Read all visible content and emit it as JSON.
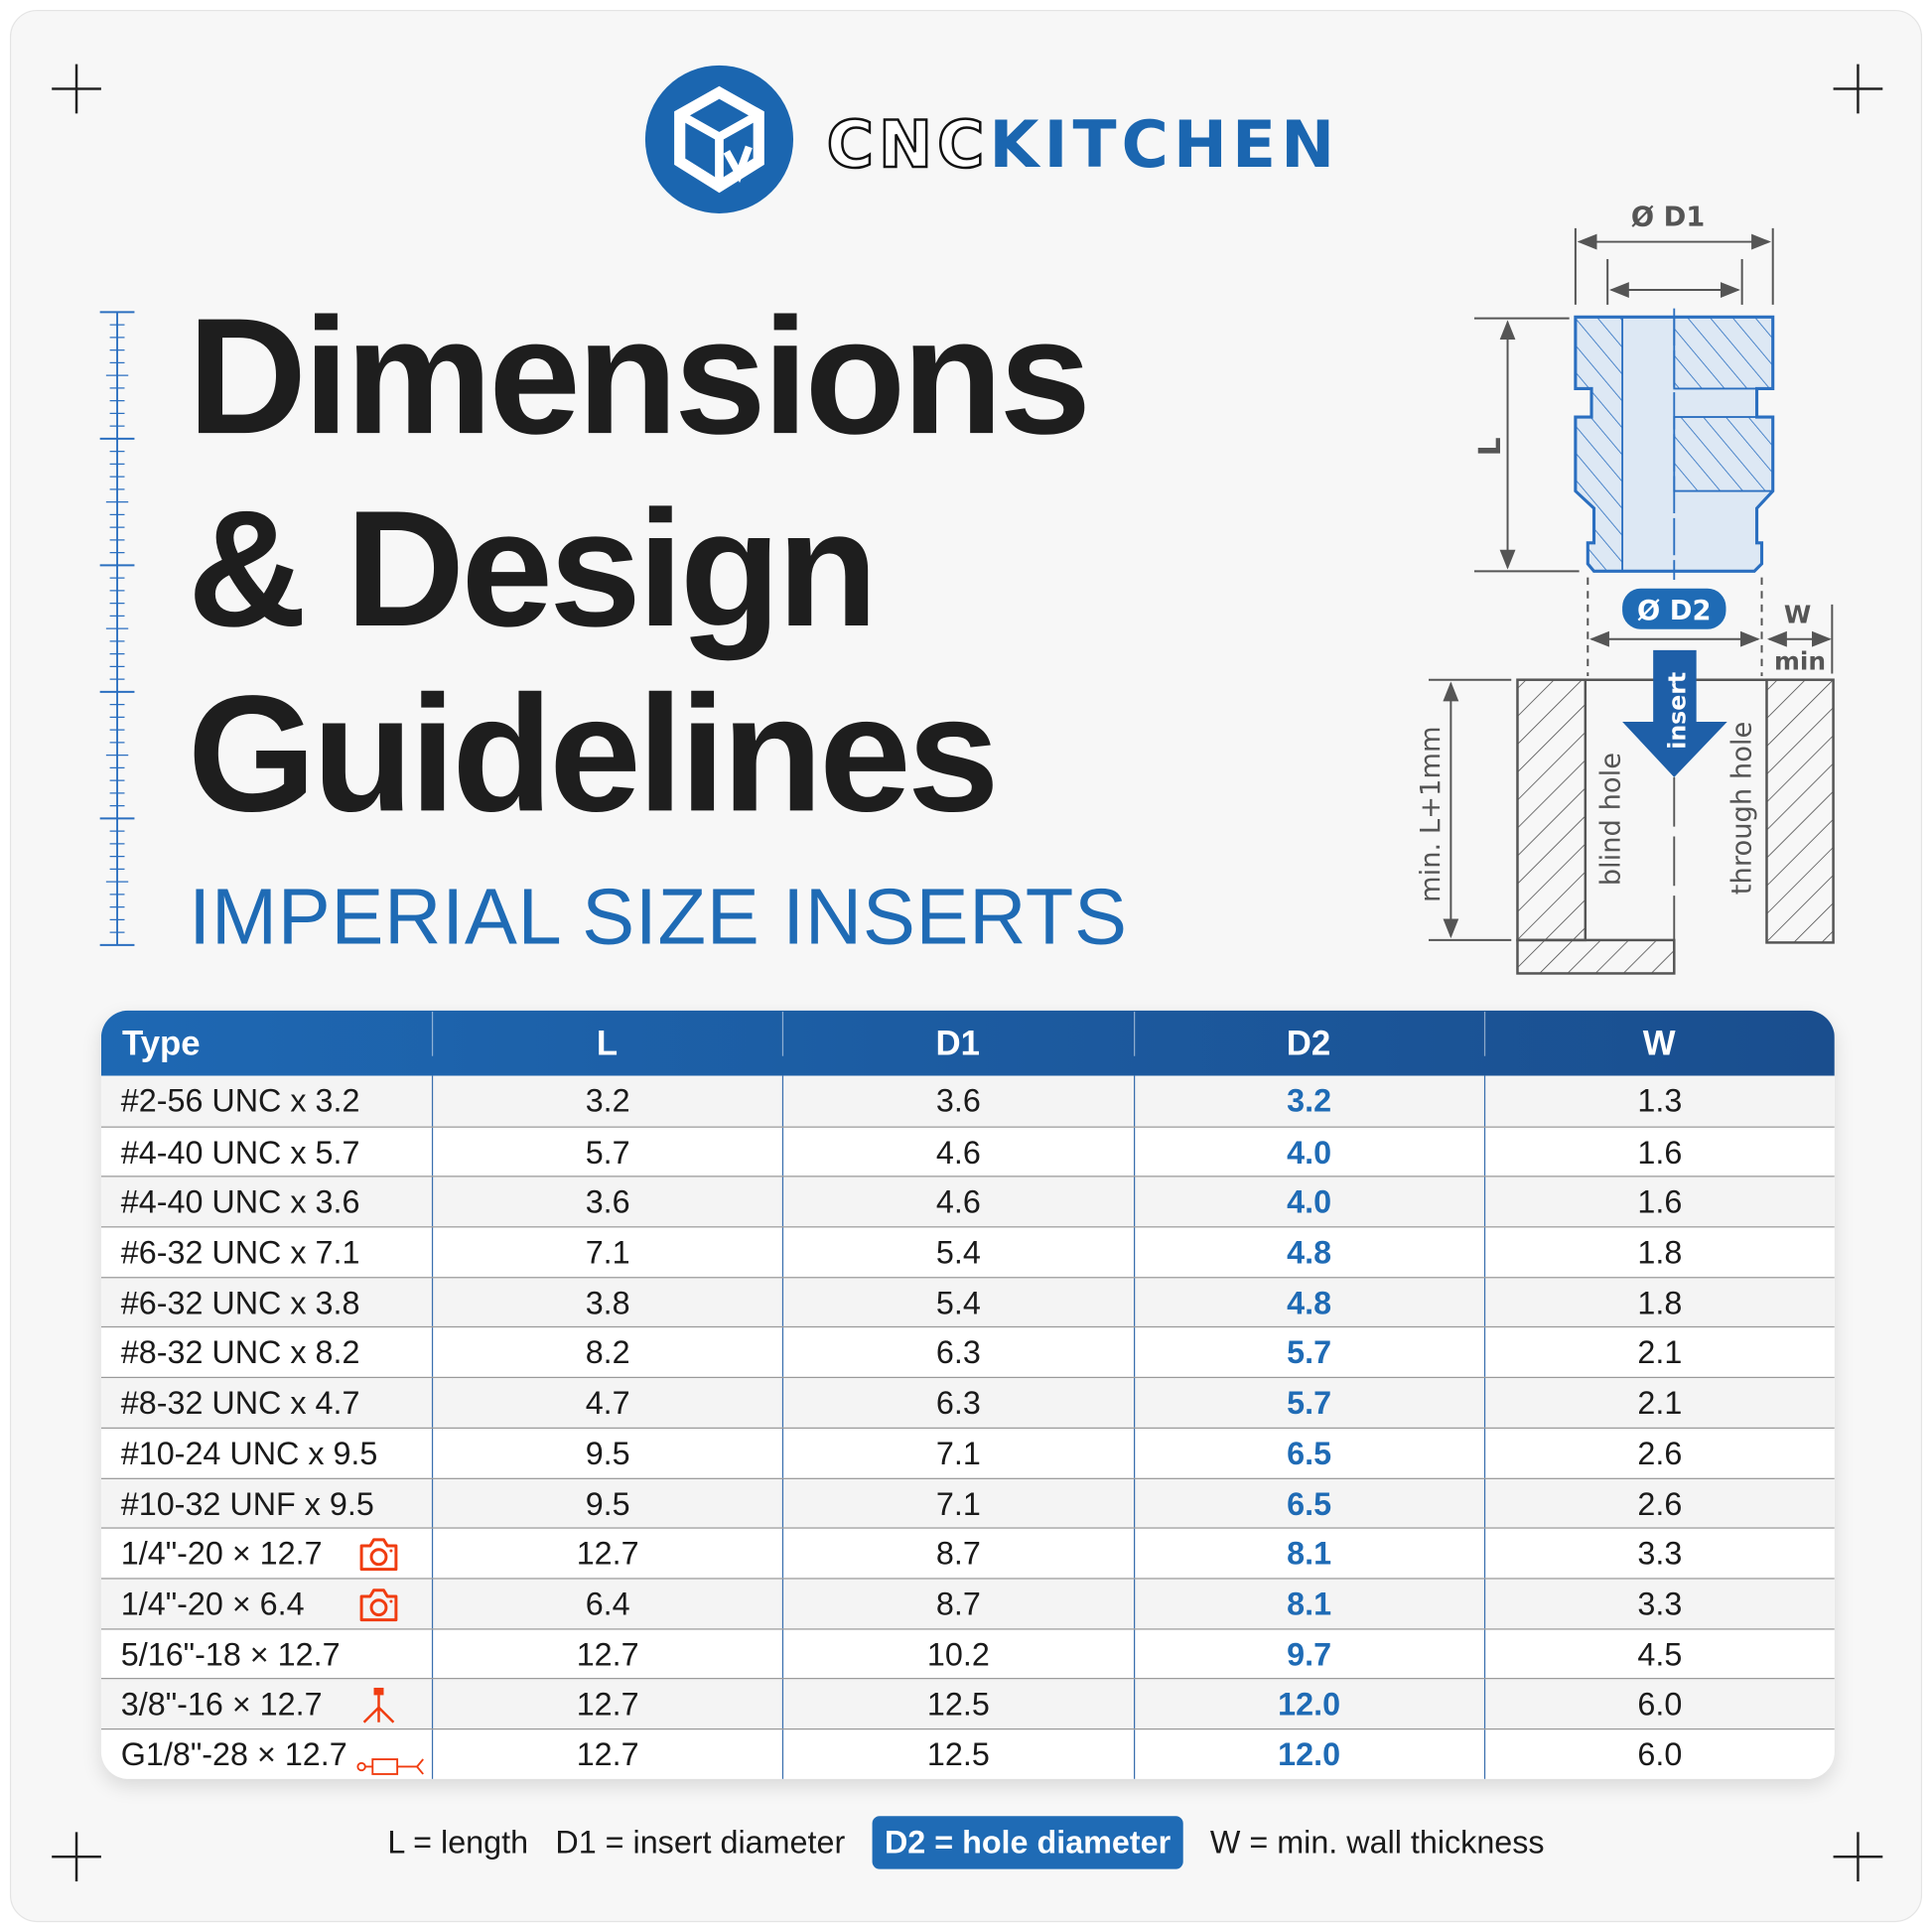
{
  "brand": {
    "name_part1": "CNC",
    "name_part2": "KITCHEN",
    "color": "#1b66b0"
  },
  "title": {
    "line1": "Dimensions",
    "line2": "& Design",
    "line3": "Guidelines",
    "subtitle": "IMPERIAL SIZE INSERTS"
  },
  "diagram": {
    "d1_label": "Ø D1",
    "d2_label": "Ø D2",
    "l_label": "L",
    "w_label": "W",
    "w_min_label": "min",
    "depth_label": "min. L+1mm",
    "insert_label": "insert",
    "blind_hole_label": "blind hole",
    "through_hole_label": "through hole"
  },
  "table": {
    "headers": [
      "Type",
      "L",
      "D1",
      "D2",
      "W"
    ],
    "rows": [
      {
        "type": "#2-56 UNC x 3.2",
        "L": "3.2",
        "D1": "3.6",
        "D2": "3.2",
        "W": "1.3",
        "icon": ""
      },
      {
        "type": "#4-40 UNC x 5.7",
        "L": "5.7",
        "D1": "4.6",
        "D2": "4.0",
        "W": "1.6",
        "icon": ""
      },
      {
        "type": "#4-40 UNC x 3.6",
        "L": "3.6",
        "D1": "4.6",
        "D2": "4.0",
        "W": "1.6",
        "icon": ""
      },
      {
        "type": "#6-32 UNC x 7.1",
        "L": "7.1",
        "D1": "5.4",
        "D2": "4.8",
        "W": "1.8",
        "icon": ""
      },
      {
        "type": "#6-32 UNC x 3.8",
        "L": "3.8",
        "D1": "5.4",
        "D2": "4.8",
        "W": "1.8",
        "icon": ""
      },
      {
        "type": "#8-32 UNC x 8.2",
        "L": "8.2",
        "D1": "6.3",
        "D2": "5.7",
        "W": "2.1",
        "icon": ""
      },
      {
        "type": "#8-32 UNC x 4.7",
        "L": "4.7",
        "D1": "6.3",
        "D2": "5.7",
        "W": "2.1",
        "icon": ""
      },
      {
        "type": "#10-24 UNC x 9.5",
        "L": "9.5",
        "D1": "7.1",
        "D2": "6.5",
        "W": "2.6",
        "icon": ""
      },
      {
        "type": "#10-32 UNF x 9.5",
        "L": "9.5",
        "D1": "7.1",
        "D2": "6.5",
        "W": "2.6",
        "icon": ""
      },
      {
        "type": "1/4\"-20 × 12.7",
        "L": "12.7",
        "D1": "8.7",
        "D2": "8.1",
        "W": "3.3",
        "icon": "camera-icon"
      },
      {
        "type": "1/4\"-20 × 6.4",
        "L": "6.4",
        "D1": "8.7",
        "D2": "8.1",
        "W": "3.3",
        "icon": "camera-icon"
      },
      {
        "type": "5/16\"-18 × 12.7",
        "L": "12.7",
        "D1": "10.2",
        "D2": "9.7",
        "W": "4.5",
        "icon": ""
      },
      {
        "type": "3/8\"-16 × 12.7",
        "L": "12.7",
        "D1": "12.5",
        "D2": "12.0",
        "W": "6.0",
        "icon": "tripod-icon"
      },
      {
        "type": "G1/8\"-28 × 12.7",
        "L": "12.7",
        "D1": "12.5",
        "D2": "12.0",
        "W": "6.0",
        "icon": "pneumatic-connector-icon"
      }
    ],
    "accent_color": "#1f6bb5",
    "icon_color": "#f03c10"
  },
  "legend": {
    "l": "L = length",
    "d1": "D1 = insert diameter",
    "d2": "D2 = hole diameter",
    "w": "W = min. wall thickness"
  }
}
